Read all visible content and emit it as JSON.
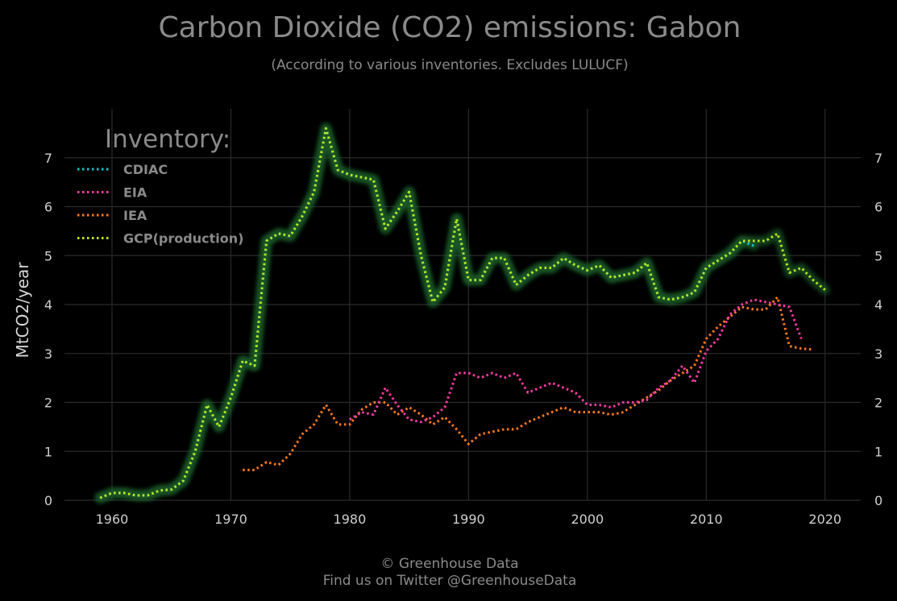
{
  "chart_data": {
    "type": "line",
    "title": "Carbon Dioxide (CO2) emissions: Gabon",
    "subtitle": "(According to various inventories. Excludes LULUCF)",
    "ylabel": "MtCO2/year",
    "xlim": [
      1956,
      2023
    ],
    "ylim": [
      0,
      8
    ],
    "xticks": [
      1960,
      1970,
      1980,
      1990,
      2000,
      2010,
      2020
    ],
    "yticks": [
      0,
      1,
      2,
      3,
      4,
      5,
      6,
      7
    ],
    "grid": true,
    "legend": {
      "title": "Inventory:",
      "placement": "top-left"
    },
    "series": [
      {
        "name": "CDIAC",
        "color": "#17c3cf",
        "x": [
          1959,
          1960,
          1961,
          1962,
          1963,
          1964,
          1965,
          1966,
          1967,
          1968,
          1969,
          1970,
          1971,
          1972,
          1973,
          1974,
          1975,
          1976,
          1977,
          1978,
          1979,
          1980,
          1981,
          1982,
          1983,
          1984,
          1985,
          1986,
          1987,
          1988,
          1989,
          1990,
          1991,
          1992,
          1993,
          1994,
          1995,
          1996,
          1997,
          1998,
          1999,
          2000,
          2001,
          2002,
          2003,
          2004,
          2005,
          2006,
          2007,
          2008,
          2009,
          2010,
          2011,
          2012,
          2013,
          2014
        ],
        "y": [
          0.05,
          0.15,
          0.15,
          0.1,
          0.1,
          0.2,
          0.22,
          0.4,
          1.0,
          1.95,
          1.5,
          2.1,
          2.85,
          2.75,
          5.3,
          5.45,
          5.4,
          5.8,
          6.3,
          7.6,
          6.75,
          6.65,
          6.6,
          6.55,
          5.55,
          5.9,
          6.3,
          5.0,
          4.05,
          4.35,
          5.75,
          4.5,
          4.5,
          4.95,
          4.95,
          4.4,
          4.6,
          4.75,
          4.75,
          4.95,
          4.8,
          4.7,
          4.8,
          4.55,
          4.6,
          4.65,
          4.85,
          4.15,
          4.1,
          4.15,
          4.25,
          4.75,
          4.9,
          5.05,
          5.3,
          5.2
        ]
      },
      {
        "name": "EIA",
        "color": "#ff3aa7",
        "x": [
          1980,
          1981,
          1982,
          1983,
          1984,
          1985,
          1986,
          1987,
          1988,
          1989,
          1990,
          1991,
          1992,
          1993,
          1994,
          1995,
          1996,
          1997,
          1998,
          1999,
          2000,
          2001,
          2002,
          2003,
          2004,
          2005,
          2006,
          2007,
          2008,
          2009,
          2010,
          2011,
          2012,
          2013,
          2014,
          2015,
          2016,
          2017,
          2018
        ],
        "y": [
          1.65,
          1.8,
          1.75,
          2.3,
          1.95,
          1.65,
          1.6,
          1.7,
          1.9,
          2.6,
          2.6,
          2.5,
          2.6,
          2.5,
          2.6,
          2.2,
          2.3,
          2.4,
          2.3,
          2.2,
          1.95,
          1.95,
          1.9,
          2.0,
          2.0,
          2.05,
          2.3,
          2.45,
          2.75,
          2.4,
          3.05,
          3.3,
          3.8,
          4.0,
          4.1,
          4.05,
          4.0,
          3.95,
          3.3
        ]
      },
      {
        "name": "IEA",
        "color": "#ff7a1a",
        "x": [
          1971,
          1972,
          1973,
          1974,
          1975,
          1976,
          1977,
          1978,
          1979,
          1980,
          1981,
          1982,
          1983,
          1984,
          1985,
          1986,
          1987,
          1988,
          1989,
          1990,
          1991,
          1992,
          1993,
          1994,
          1995,
          1996,
          1997,
          1998,
          1999,
          2000,
          2001,
          2002,
          2003,
          2004,
          2005,
          2006,
          2007,
          2008,
          2009,
          2010,
          2011,
          2012,
          2013,
          2014,
          2015,
          2016,
          2017,
          2018,
          2019
        ],
        "y": [
          0.62,
          0.62,
          0.78,
          0.72,
          0.95,
          1.35,
          1.55,
          1.95,
          1.55,
          1.55,
          1.85,
          2.0,
          2.0,
          1.75,
          1.9,
          1.75,
          1.55,
          1.7,
          1.45,
          1.15,
          1.35,
          1.4,
          1.45,
          1.45,
          1.6,
          1.7,
          1.8,
          1.9,
          1.8,
          1.8,
          1.8,
          1.75,
          1.8,
          1.95,
          2.1,
          2.25,
          2.45,
          2.6,
          2.75,
          3.3,
          3.55,
          3.75,
          3.95,
          3.9,
          3.9,
          4.15,
          3.15,
          3.1,
          3.08
        ]
      },
      {
        "name": "GCP(production)",
        "color": "#bde61a",
        "x": [
          1959,
          1960,
          1961,
          1962,
          1963,
          1964,
          1965,
          1966,
          1967,
          1968,
          1969,
          1970,
          1971,
          1972,
          1973,
          1974,
          1975,
          1976,
          1977,
          1978,
          1979,
          1980,
          1981,
          1982,
          1983,
          1984,
          1985,
          1986,
          1987,
          1988,
          1989,
          1990,
          1991,
          1992,
          1993,
          1994,
          1995,
          1996,
          1997,
          1998,
          1999,
          2000,
          2001,
          2002,
          2003,
          2004,
          2005,
          2006,
          2007,
          2008,
          2009,
          2010,
          2011,
          2012,
          2013,
          2014,
          2015,
          2016,
          2017,
          2018,
          2019,
          2020
        ],
        "y": [
          0.05,
          0.15,
          0.15,
          0.1,
          0.1,
          0.2,
          0.22,
          0.4,
          1.0,
          1.95,
          1.5,
          2.1,
          2.85,
          2.75,
          5.3,
          5.45,
          5.4,
          5.8,
          6.3,
          7.6,
          6.75,
          6.65,
          6.6,
          6.55,
          5.55,
          5.9,
          6.3,
          5.0,
          4.05,
          4.35,
          5.75,
          4.5,
          4.5,
          4.95,
          4.95,
          4.4,
          4.6,
          4.75,
          4.75,
          4.95,
          4.8,
          4.7,
          4.8,
          4.55,
          4.6,
          4.65,
          4.85,
          4.15,
          4.1,
          4.15,
          4.25,
          4.75,
          4.9,
          5.05,
          5.3,
          5.3,
          5.3,
          5.45,
          4.65,
          4.75,
          4.5,
          4.3
        ]
      }
    ]
  },
  "footer": {
    "line1": "© Greenhouse Data",
    "line2": "Find us on Twitter @GreenhouseData"
  }
}
